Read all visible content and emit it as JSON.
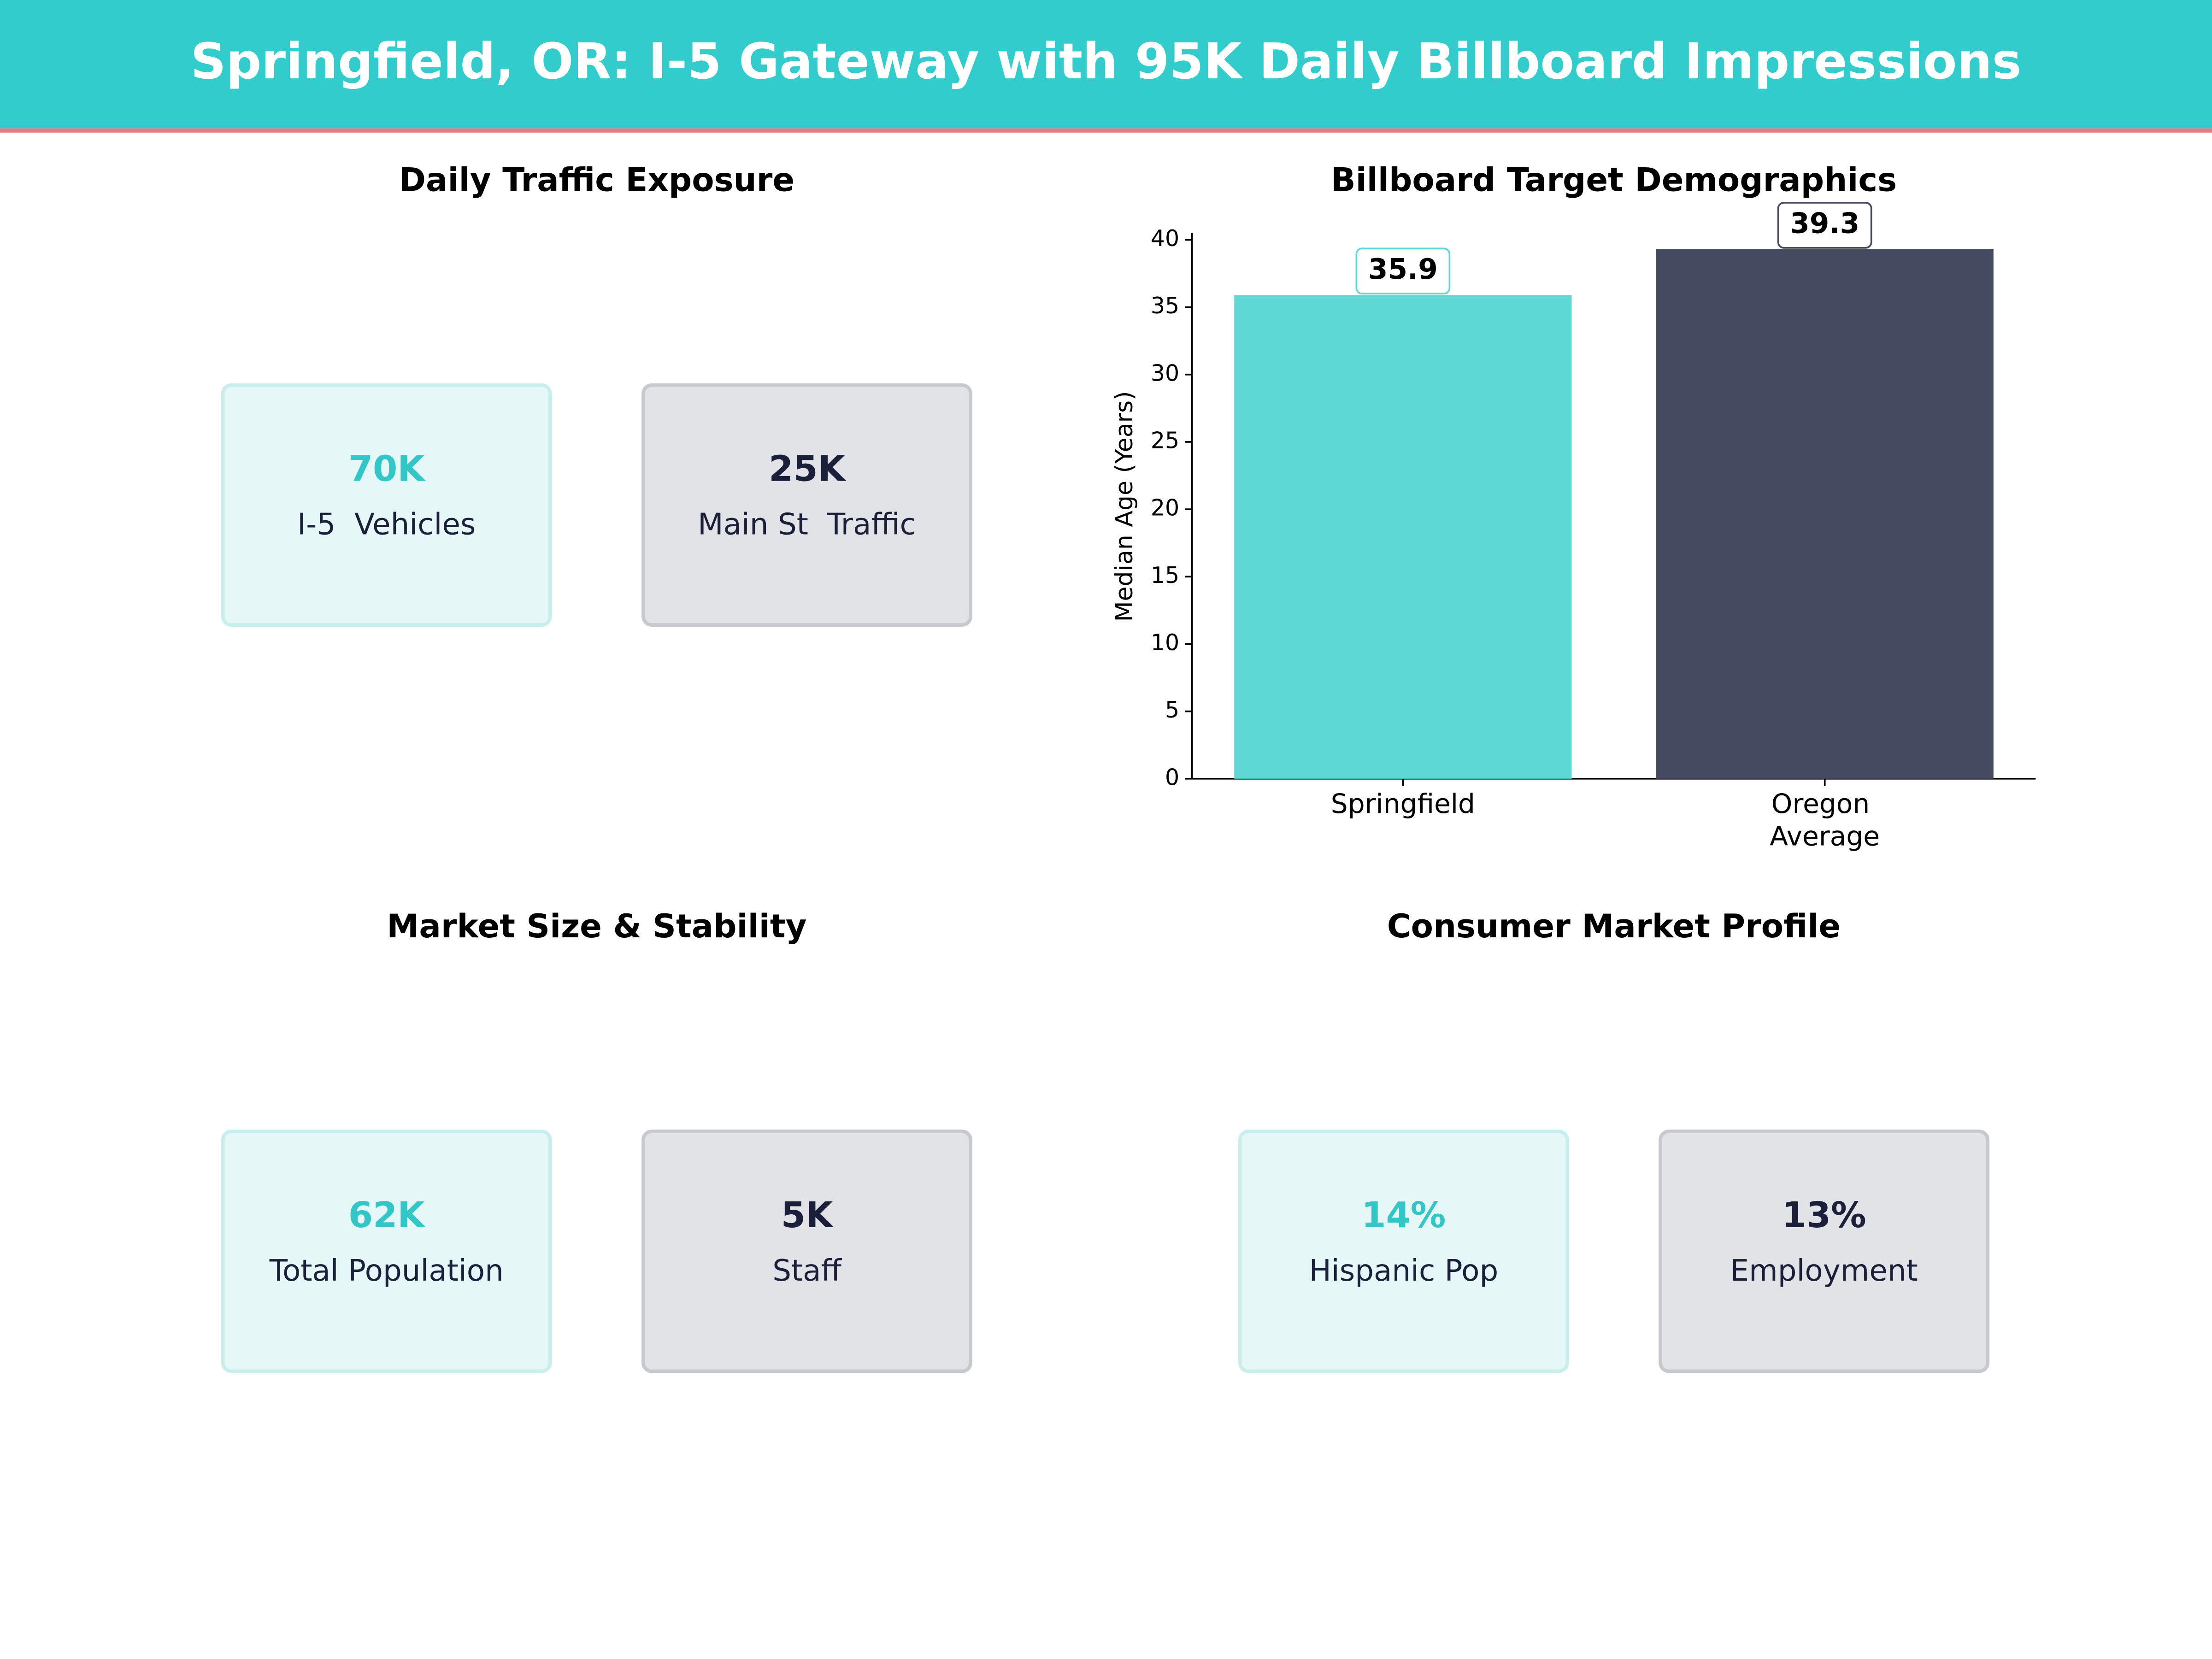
{
  "header": {
    "title": "Springfield, OR: I-5 Gateway with 95K Daily Billboard Impressions"
  },
  "kpi_panels": [
    {
      "title": "Daily Traffic Exposure",
      "cards": [
        {
          "value": "70K",
          "label": "I-5  Vehicles"
        },
        {
          "value": "25K",
          "label": "Main St  Traffic"
        }
      ]
    },
    {
      "title": "Market Size & Stability",
      "cards": [
        {
          "value": "62K",
          "label": "Total Population"
        },
        {
          "value": "5K",
          "label": "Staff"
        }
      ]
    },
    {
      "title": "Consumer Market Profile",
      "cards": [
        {
          "value": "14%",
          "label": "Hispanic Pop"
        },
        {
          "value": "13%",
          "label": "Employment"
        }
      ]
    }
  ],
  "chart_data": {
    "type": "bar",
    "title": "Billboard Target Demographics",
    "categories": [
      "Springfield",
      "Oregon Average"
    ],
    "values": [
      35.9,
      39.3
    ],
    "colors": [
      "#5dd8d5",
      "#454a60"
    ],
    "y_label": "Median Age (Years)",
    "ylim": [
      0,
      40.5
    ],
    "yticks": [
      0,
      5,
      10,
      15,
      20,
      25,
      30,
      35,
      40
    ]
  }
}
